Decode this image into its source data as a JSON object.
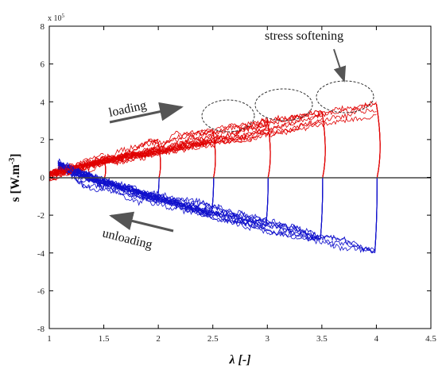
{
  "chart_data": {
    "type": "line",
    "xlabel": "λ [-]",
    "ylabel_main": "s [W.m",
    "ylabel_sup": "-3",
    "ylabel_close": "]",
    "y_multiplier_base": "x 10",
    "y_multiplier_exp": "5",
    "xlim": [
      1,
      4.5
    ],
    "ylim": [
      -800000,
      800000
    ],
    "x_ticks": [
      "1",
      "1.5",
      "2",
      "2.5",
      "3",
      "3.5",
      "4",
      "4.5"
    ],
    "y_ticks": [
      "-8",
      "-6",
      "-4",
      "-2",
      "0",
      "2",
      "4",
      "6",
      "8"
    ],
    "grid": false,
    "annotations": {
      "loading": "loading",
      "unloading": "unloading",
      "stress_softening": "stress softening"
    },
    "colors": {
      "loading": "#e00000",
      "unloading": "#1010cc",
      "zero_line": "#444444",
      "arrow": "#555555"
    },
    "cycles": [
      {
        "lambda_max": 1.5,
        "loading_end": 100000,
        "unloading_end": -70000
      },
      {
        "lambda_max": 2.0,
        "loading_end": 180000,
        "unloading_end": -130000
      },
      {
        "lambda_max": 2.5,
        "loading_end": 250000,
        "unloading_end": -200000
      },
      {
        "lambda_max": 3.0,
        "loading_end": 300000,
        "unloading_end": -260000
      },
      {
        "lambda_max": 3.5,
        "loading_end": 350000,
        "unloading_end": -330000
      },
      {
        "lambda_max": 4.0,
        "loading_end": 390000,
        "unloading_end": -400000
      }
    ],
    "series": [
      {
        "values": "loading curves (red), ~repeated trials per cycle, rising from ~0 at λ=1 to the cycle's loading_end"
      },
      {
        "values": "unloading curves (blue), falling from ~0 at λ≈1.1 to the cycle's unloading_end"
      }
    ]
  }
}
